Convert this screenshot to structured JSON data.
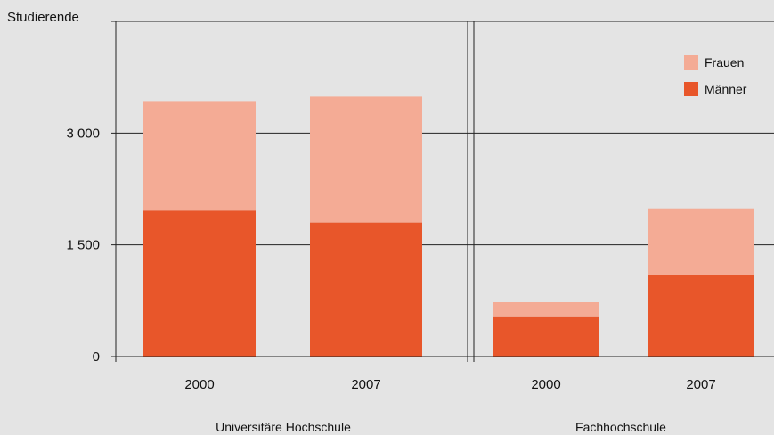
{
  "chart_data": {
    "type": "bar",
    "stacked": true,
    "ylabel": "Studierende",
    "ylim": [
      0,
      4500
    ],
    "yticks": [
      {
        "value": 0,
        "label": "0"
      },
      {
        "value": 1500,
        "label": "1 500"
      },
      {
        "value": 3000,
        "label": "3 000"
      }
    ],
    "grid": true,
    "legend": "top-right",
    "series": [
      {
        "name": "Männer",
        "color": "#e8562a"
      },
      {
        "name": "Frauen",
        "color": "#f4ab95"
      }
    ],
    "panels": [
      {
        "label": "Universitäre Hochschule",
        "categories": [
          "2000",
          "2007"
        ],
        "values": {
          "Männer": [
            1960,
            1800
          ],
          "Frauen": [
            1470,
            1690
          ]
        }
      },
      {
        "label": "Fachhochschule",
        "categories": [
          "2000",
          "2007"
        ],
        "values": {
          "Männer": [
            530,
            1090
          ],
          "Frauen": [
            200,
            900
          ]
        }
      }
    ]
  }
}
